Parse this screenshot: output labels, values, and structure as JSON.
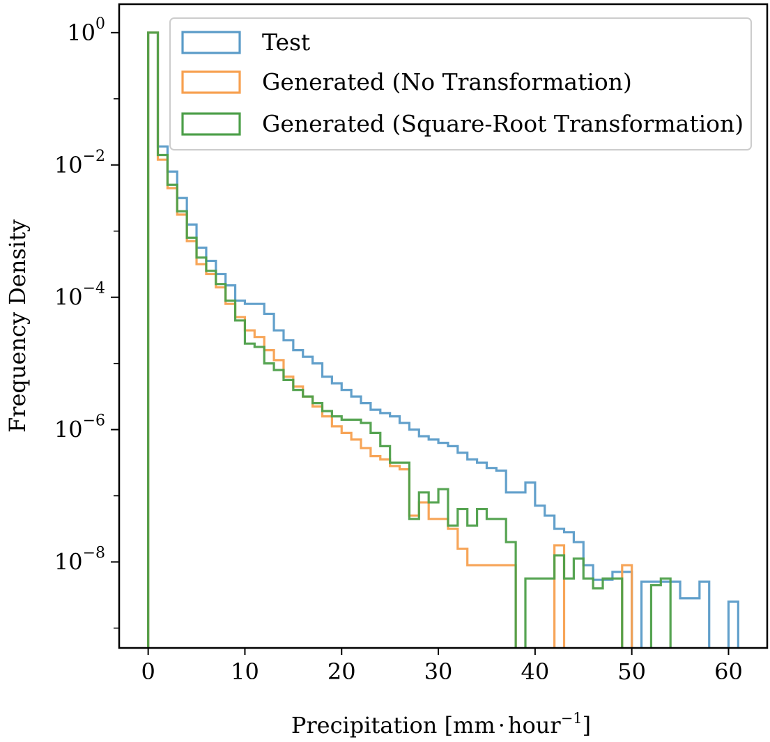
{
  "chart_data": {
    "type": "histogram-step",
    "title": "",
    "xlabel": {
      "main": "Precipitation [mm",
      "dot": "·",
      "unit": "hour",
      "exponent": "−1",
      "close": "]"
    },
    "ylabel": "Frequency Density",
    "xlim": [
      -3,
      64
    ],
    "ylim_log10": [
      -9.3,
      0.43
    ],
    "y_scale": "log",
    "x_ticks": [
      0,
      10,
      20,
      30,
      40,
      50,
      60
    ],
    "x_tick_labels": [
      "0",
      "10",
      "20",
      "30",
      "40",
      "50",
      "60"
    ],
    "y_ticks": [
      {
        "exp": 0,
        "base": "10",
        "label": "0"
      },
      {
        "exp": -2,
        "base": "10",
        "label": "−2"
      },
      {
        "exp": -4,
        "base": "10",
        "label": "−4"
      },
      {
        "exp": -6,
        "base": "10",
        "label": "−6"
      },
      {
        "exp": -8,
        "base": "10",
        "label": "−8"
      }
    ],
    "bin_edges_start": 0,
    "bin_width": 1,
    "legend_position": "top-right",
    "series": [
      {
        "name": "Test",
        "color": "#5a9bc8",
        "log10_values": [
          0.0,
          -1.72,
          -2.1,
          -2.5,
          -2.9,
          -3.25,
          -3.45,
          -3.65,
          -3.82,
          -4.05,
          -4.1,
          -4.1,
          -4.25,
          -4.5,
          -4.65,
          -4.8,
          -4.9,
          -5.0,
          -5.2,
          -5.3,
          -5.4,
          -5.5,
          -5.6,
          -5.7,
          -5.75,
          -5.8,
          -5.9,
          -6.0,
          -6.1,
          -6.15,
          -6.2,
          -6.25,
          -6.35,
          -6.45,
          -6.5,
          -6.58,
          -6.62,
          -6.95,
          -6.95,
          -6.8,
          -7.15,
          -7.3,
          -7.5,
          -7.55,
          -7.7,
          -8.05,
          -8.27,
          -8.27,
          -8.15,
          -8.15,
          -9.5,
          -8.3,
          -8.3,
          -8.3,
          -8.3,
          -8.55,
          -8.55,
          -8.3,
          -9.5,
          -9.5,
          -8.6
        ]
      },
      {
        "name": "Generated (No Transformation)",
        "color": "#f7a04f",
        "log10_values": [
          0.0,
          -1.92,
          -2.35,
          -2.75,
          -3.15,
          -3.5,
          -3.65,
          -3.85,
          -4.1,
          -4.3,
          -4.5,
          -4.6,
          -4.8,
          -4.95,
          -5.2,
          -5.35,
          -5.5,
          -5.65,
          -5.8,
          -5.95,
          -6.05,
          -6.15,
          -6.28,
          -6.4,
          -6.45,
          -6.55,
          -6.6,
          -7.3,
          -7.1,
          -7.35,
          -7.35,
          -7.5,
          -7.8,
          -8.05,
          -8.05,
          -8.05,
          -8.05,
          -8.05,
          -9.5,
          -9.5,
          -9.5,
          -9.5,
          -7.75,
          -9.5,
          -9.5,
          -9.5,
          -9.5,
          -9.5,
          -9.5,
          -8.05
        ]
      },
      {
        "name": "Generated (Square-Root Transformation)",
        "color": "#4d9f49",
        "log10_values": [
          0.0,
          -1.85,
          -2.3,
          -2.7,
          -3.1,
          -3.4,
          -3.6,
          -3.8,
          -4.05,
          -4.35,
          -4.7,
          -4.75,
          -5.0,
          -5.1,
          -5.25,
          -5.4,
          -5.5,
          -5.6,
          -5.72,
          -5.8,
          -5.85,
          -5.85,
          -5.9,
          -6.05,
          -6.25,
          -6.5,
          -6.5,
          -7.35,
          -6.95,
          -7.1,
          -6.9,
          -7.45,
          -7.2,
          -7.45,
          -7.2,
          -7.35,
          -7.35,
          -7.7,
          -9.5,
          -8.25,
          -8.25,
          -8.25,
          -7.9,
          -8.25,
          -7.95,
          -8.25,
          -8.4,
          -8.25,
          -8.25,
          -9.5,
          -9.5,
          -9.5,
          -8.35,
          -8.25
        ]
      }
    ]
  }
}
